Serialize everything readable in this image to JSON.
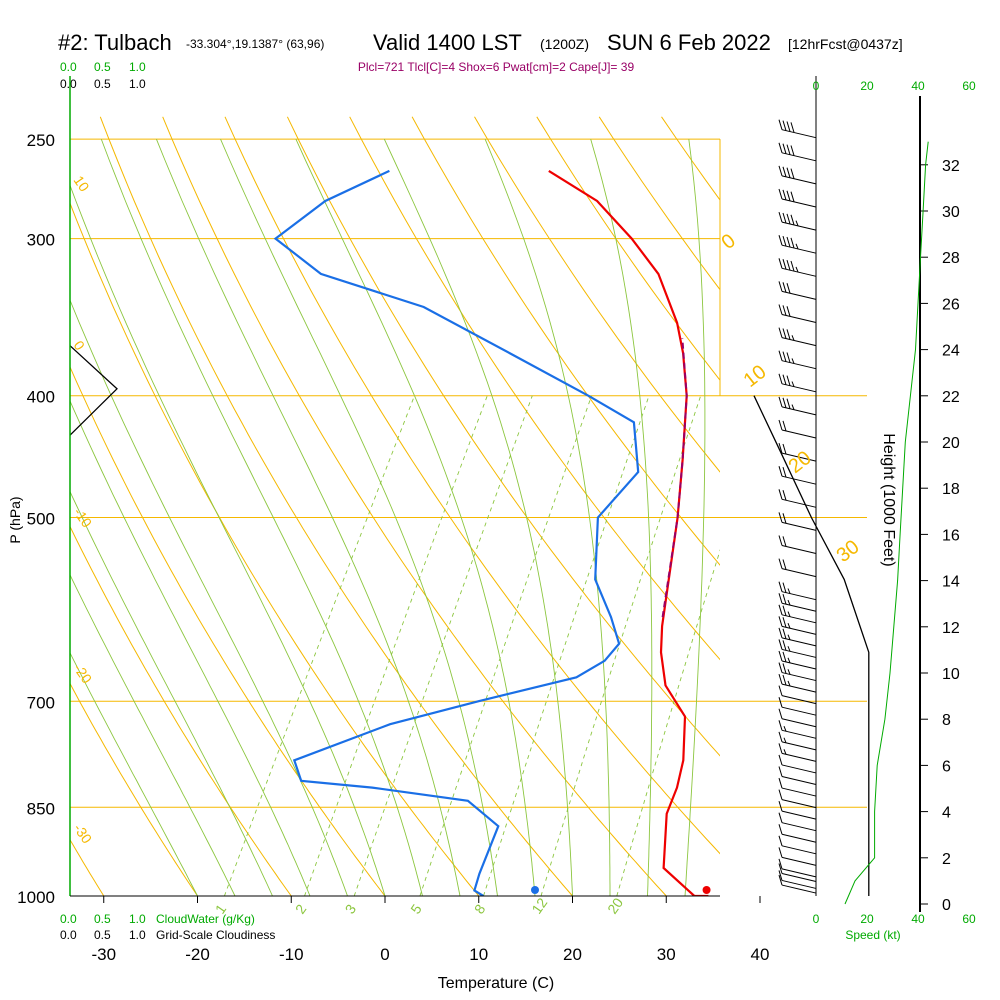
{
  "header": {
    "station": "#2: Tulbach",
    "coords": "-33.304°,19.1387° (63,96)",
    "valid": "Valid 1400 LST",
    "zulu": "(1200Z)",
    "date": "SUN 6 Feb 2022",
    "forecast": "[12hrFcst@0437z]",
    "indices": "Plcl=721 Tlcl[C]=4 Shox=6 Pwat[cm]=2 Cape[J]= 39"
  },
  "top_left_scale": {
    "green": [
      "0.0",
      "0.5",
      "1.0"
    ],
    "black": [
      "0.0",
      "0.5",
      "1.0"
    ]
  },
  "bottom_left": {
    "cloudwater_ticks": [
      "0.0",
      "0.5",
      "1.0"
    ],
    "cloudwater_label": "CloudWater (g/Kg)",
    "cloudiness_ticks": [
      "0.0",
      "0.5",
      "1.0"
    ],
    "cloudiness_label": "Grid-Scale Cloudiness"
  },
  "right_panel": {
    "top_ticks": [
      "0",
      "20",
      "40",
      "60"
    ],
    "bottom_ticks": [
      "0",
      "20",
      "40",
      "60"
    ],
    "speed_label": "Speed (kt)",
    "height_label": "Height (1000 Feet)",
    "height_ticks": [
      "0",
      "2",
      "4",
      "6",
      "8",
      "10",
      "12",
      "14",
      "16",
      "18",
      "20",
      "22",
      "24",
      "26",
      "28",
      "30",
      "32"
    ]
  },
  "colors": {
    "isobar": "#f5b800",
    "dry_adiabat": "#f5b800",
    "moist_adiabat": "#8cc63f",
    "mixing_ratio": "#8cc63f",
    "temperature": "#ee0000",
    "dewpoint": "#1a6fe6",
    "parcel": "#990066",
    "green_text": "#00aa00"
  },
  "chart_data": {
    "type": "line",
    "title": "#2: Tulbach -33.304°,19.1387° (63,96)  Valid 1400 LST (1200Z) SUN 6 Feb 2022 [12hrFcst@0437z]",
    "subtitle": "Plcl=721 Tlcl[C]=4 Shox=6 Pwat[cm]=2 Cape[J]= 39",
    "xlabel": "Temperature (C)",
    "ylabel": "P (hPa)",
    "xlim": [
      -35,
      45
    ],
    "ylim": [
      1000,
      250
    ],
    "x_ticks": [
      "-30",
      "-20",
      "-10",
      "0",
      "10",
      "20",
      "30",
      "40"
    ],
    "p_ticks": [
      "250",
      "300",
      "400",
      "500",
      "700",
      "850",
      "1000"
    ],
    "dry_adiabat_labels": [
      "10",
      "0",
      "-10",
      "-20",
      "-30"
    ],
    "dry_adiabat_right_labels": [
      "0",
      "10",
      "20",
      "30"
    ],
    "mixing_ratio_labels": [
      "1",
      "2",
      "3",
      "5",
      "8",
      "12",
      "20"
    ],
    "series": [
      {
        "name": "Temperature",
        "points": [
          [
            34.5,
            1000
          ],
          [
            33,
            1000
          ],
          [
            28,
            950
          ],
          [
            25,
            860
          ],
          [
            24.5,
            820
          ],
          [
            23.5,
            780
          ],
          [
            21,
            720
          ],
          [
            17,
            680
          ],
          [
            14.5,
            640
          ],
          [
            13,
            610
          ],
          [
            8,
            500
          ],
          [
            5,
            450
          ],
          [
            1.5,
            400
          ],
          [
            -1.5,
            370
          ],
          [
            -4,
            350
          ],
          [
            -9,
            320
          ],
          [
            -14,
            300
          ],
          [
            -20,
            280
          ],
          [
            -27,
            265
          ]
        ]
      },
      {
        "name": "Dewpoint",
        "points": [
          [
            10.5,
            1000
          ],
          [
            9.2,
            990
          ],
          [
            8.7,
            960
          ],
          [
            7.8,
            880
          ],
          [
            3,
            840
          ],
          [
            -8,
            820
          ],
          [
            -16,
            810
          ],
          [
            -18,
            780
          ],
          [
            -10,
            730
          ],
          [
            -2,
            700
          ],
          [
            7,
            670
          ],
          [
            9,
            650
          ],
          [
            9.5,
            630
          ],
          [
            7,
            600
          ],
          [
            3,
            560
          ],
          [
            -0.5,
            500
          ],
          [
            1,
            460
          ],
          [
            -2.5,
            420
          ],
          [
            -9,
            400
          ],
          [
            -20,
            370
          ],
          [
            -32,
            340
          ],
          [
            -45,
            320
          ],
          [
            -52,
            300
          ],
          [
            -49,
            280
          ],
          [
            -44,
            265
          ]
        ]
      },
      {
        "name": "Parcel",
        "points": [
          [
            12.5,
            600
          ],
          [
            8,
            500
          ],
          [
            5,
            450
          ],
          [
            1.5,
            400
          ],
          [
            -2.5,
            360
          ]
        ]
      }
    ],
    "surface_points": {
      "temperature": 34.3,
      "dewpoint": 16
    },
    "wind_barbs": {
      "heights_kft": [
        0.3,
        0.5,
        0.8,
        1,
        1.5,
        2,
        2.5,
        3,
        3.5,
        4,
        4.5,
        5,
        5.5,
        6,
        6.5,
        7,
        7.5,
        8,
        8.5,
        9,
        9.5,
        10,
        10.5,
        11,
        11.5,
        12,
        12.5,
        13,
        14,
        15,
        16,
        17,
        18,
        19,
        20,
        21,
        22,
        23,
        24,
        25,
        26,
        27,
        28,
        29,
        30,
        31,
        32,
        33
      ],
      "speeds_kt": [
        10,
        10,
        10,
        10,
        10,
        10,
        10,
        10,
        10,
        10,
        10,
        10,
        10,
        5,
        5,
        5,
        10,
        10,
        10,
        15,
        15,
        15,
        15,
        15,
        15,
        15,
        15,
        15,
        20,
        20,
        20,
        20,
        20,
        20,
        20,
        25,
        25,
        25,
        25,
        30,
        30,
        35,
        35,
        35,
        40,
        40,
        40,
        40
      ]
    },
    "speed_profile": {
      "heights_kft": [
        0,
        0.5,
        1,
        2,
        3,
        4,
        5,
        6,
        8,
        10,
        12,
        14,
        16,
        18,
        20,
        22,
        24,
        26,
        28,
        30,
        32,
        33
      ],
      "speeds_kt": [
        22,
        22.5,
        23,
        23,
        23,
        23,
        23.5,
        24,
        27,
        29,
        30.5,
        32,
        33,
        34,
        35,
        37,
        39,
        40,
        41,
        42,
        43,
        44
      ]
    },
    "tropopause_boundary": [
      [
        -35,
        365
      ],
      [
        -30,
        395
      ],
      [
        -35,
        430
      ]
    ],
    "right_boundary": [
      [
        45,
        400
      ],
      [
        48,
        440
      ],
      [
        52,
        500
      ],
      [
        56,
        560
      ],
      [
        59,
        640
      ],
      [
        59,
        1000
      ]
    ]
  }
}
